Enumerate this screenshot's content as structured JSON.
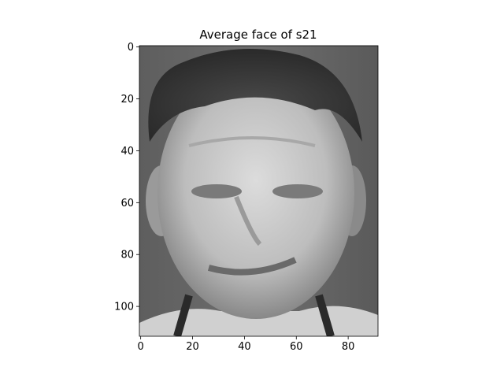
{
  "chart_data": {
    "type": "image",
    "title": "Average face of s21",
    "cmap": "gray",
    "xlim": [
      -0.5,
      91.5
    ],
    "ylim": [
      111.5,
      -0.5
    ],
    "xticks": [
      0,
      20,
      40,
      60,
      80
    ],
    "yticks": [
      0,
      20,
      40,
      60,
      80,
      100
    ]
  }
}
